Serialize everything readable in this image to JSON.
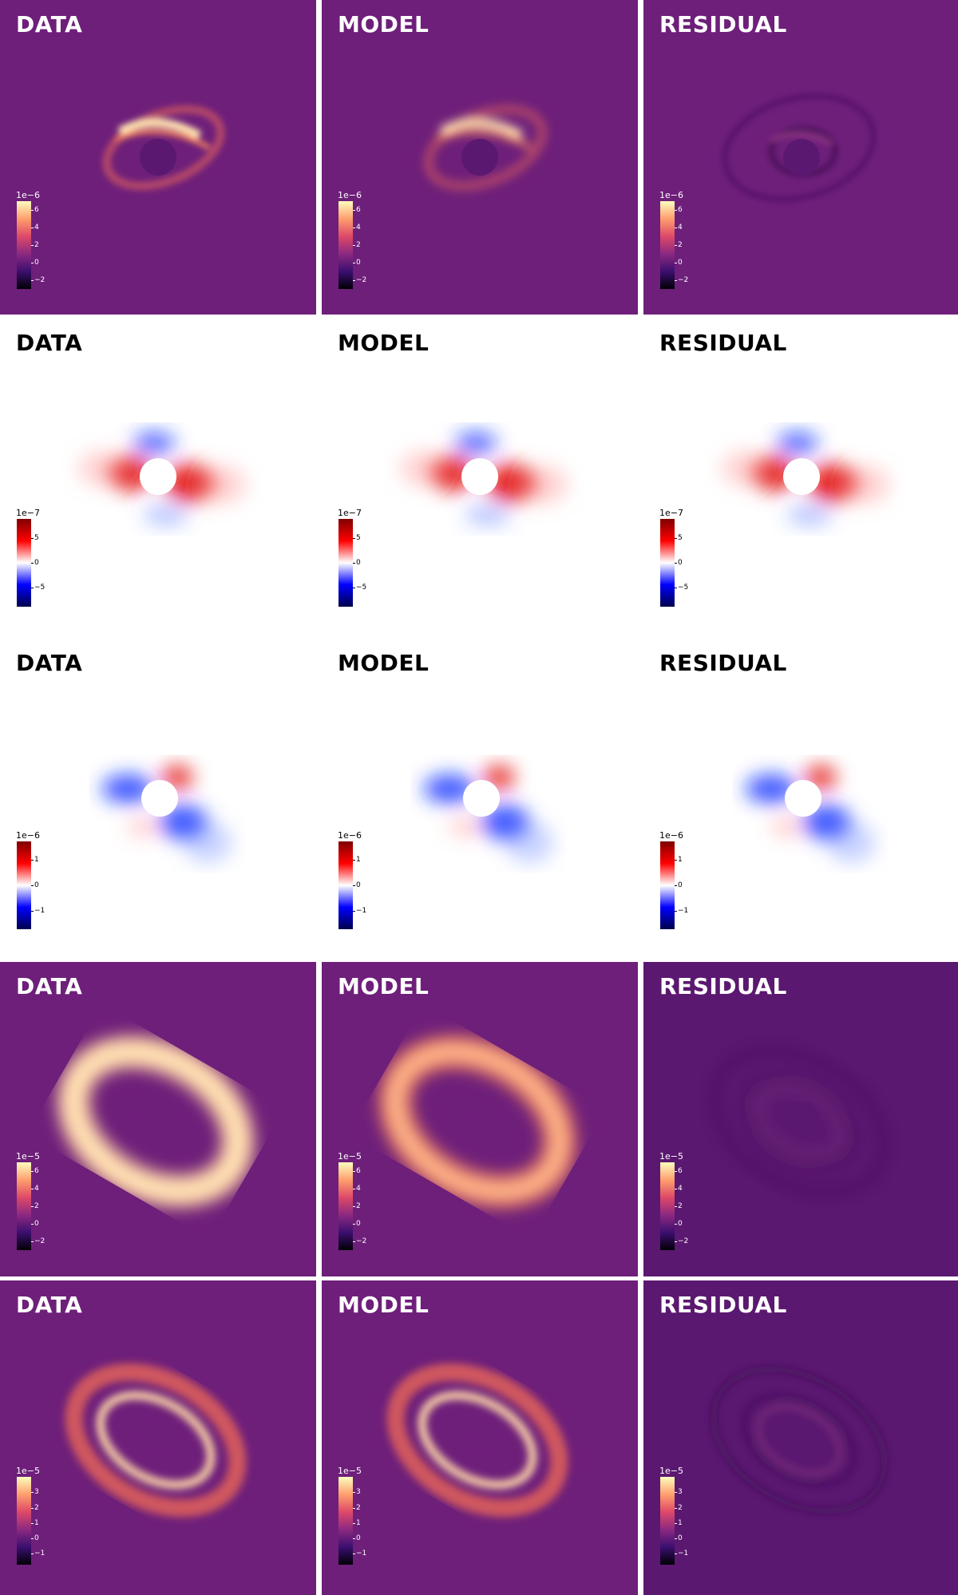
{
  "columns": [
    "DATA",
    "MODEL",
    "RESIDUAL"
  ],
  "rows": [
    {
      "name": "row-1",
      "colormap": "magma",
      "exponent": "1e−6",
      "ticks": [
        "6",
        "4",
        "2",
        "0",
        "−2"
      ],
      "tick_values": [
        6,
        4,
        2,
        0,
        -2
      ],
      "vmin": -3,
      "vmax": 7,
      "panels": [
        "DATA",
        "MODEL",
        "RESIDUAL"
      ]
    },
    {
      "name": "row-2",
      "colormap": "seismic",
      "exponent": "1e−7",
      "ticks": [
        "5",
        "0",
        "−5"
      ],
      "tick_values": [
        5,
        0,
        -5
      ],
      "vmin": -9,
      "vmax": 9,
      "panels": [
        "DATA",
        "MODEL",
        "RESIDUAL"
      ]
    },
    {
      "name": "row-3",
      "colormap": "seismic",
      "exponent": "1e−6",
      "ticks": [
        "1",
        "0",
        "−1"
      ],
      "tick_values": [
        1,
        0,
        -1
      ],
      "vmin": -1.7,
      "vmax": 1.7,
      "panels": [
        "DATA",
        "MODEL",
        "RESIDUAL"
      ]
    },
    {
      "name": "row-4",
      "colormap": "magma",
      "exponent": "1e−5",
      "ticks": [
        "6",
        "4",
        "2",
        "0",
        "−2"
      ],
      "tick_values": [
        6,
        4,
        2,
        0,
        -2
      ],
      "vmin": -3,
      "vmax": 7,
      "panels": [
        "DATA",
        "MODEL",
        "RESIDUAL"
      ]
    },
    {
      "name": "row-5",
      "colormap": "magma",
      "exponent": "1e−5",
      "ticks": [
        "3",
        "2",
        "1",
        "0",
        "−1"
      ],
      "tick_values": [
        3,
        2,
        1,
        0,
        -1
      ],
      "vmin": -1.7,
      "vmax": 4,
      "panels": [
        "DATA",
        "MODEL",
        "RESIDUAL"
      ]
    }
  ],
  "colors": {
    "magma_bg": "#6e1f7a",
    "magma_bg_dark": "#5b1870",
    "seismic_bg": "#ffffff",
    "title_on_dark": "#ffffff",
    "title_on_light": "#000000"
  }
}
